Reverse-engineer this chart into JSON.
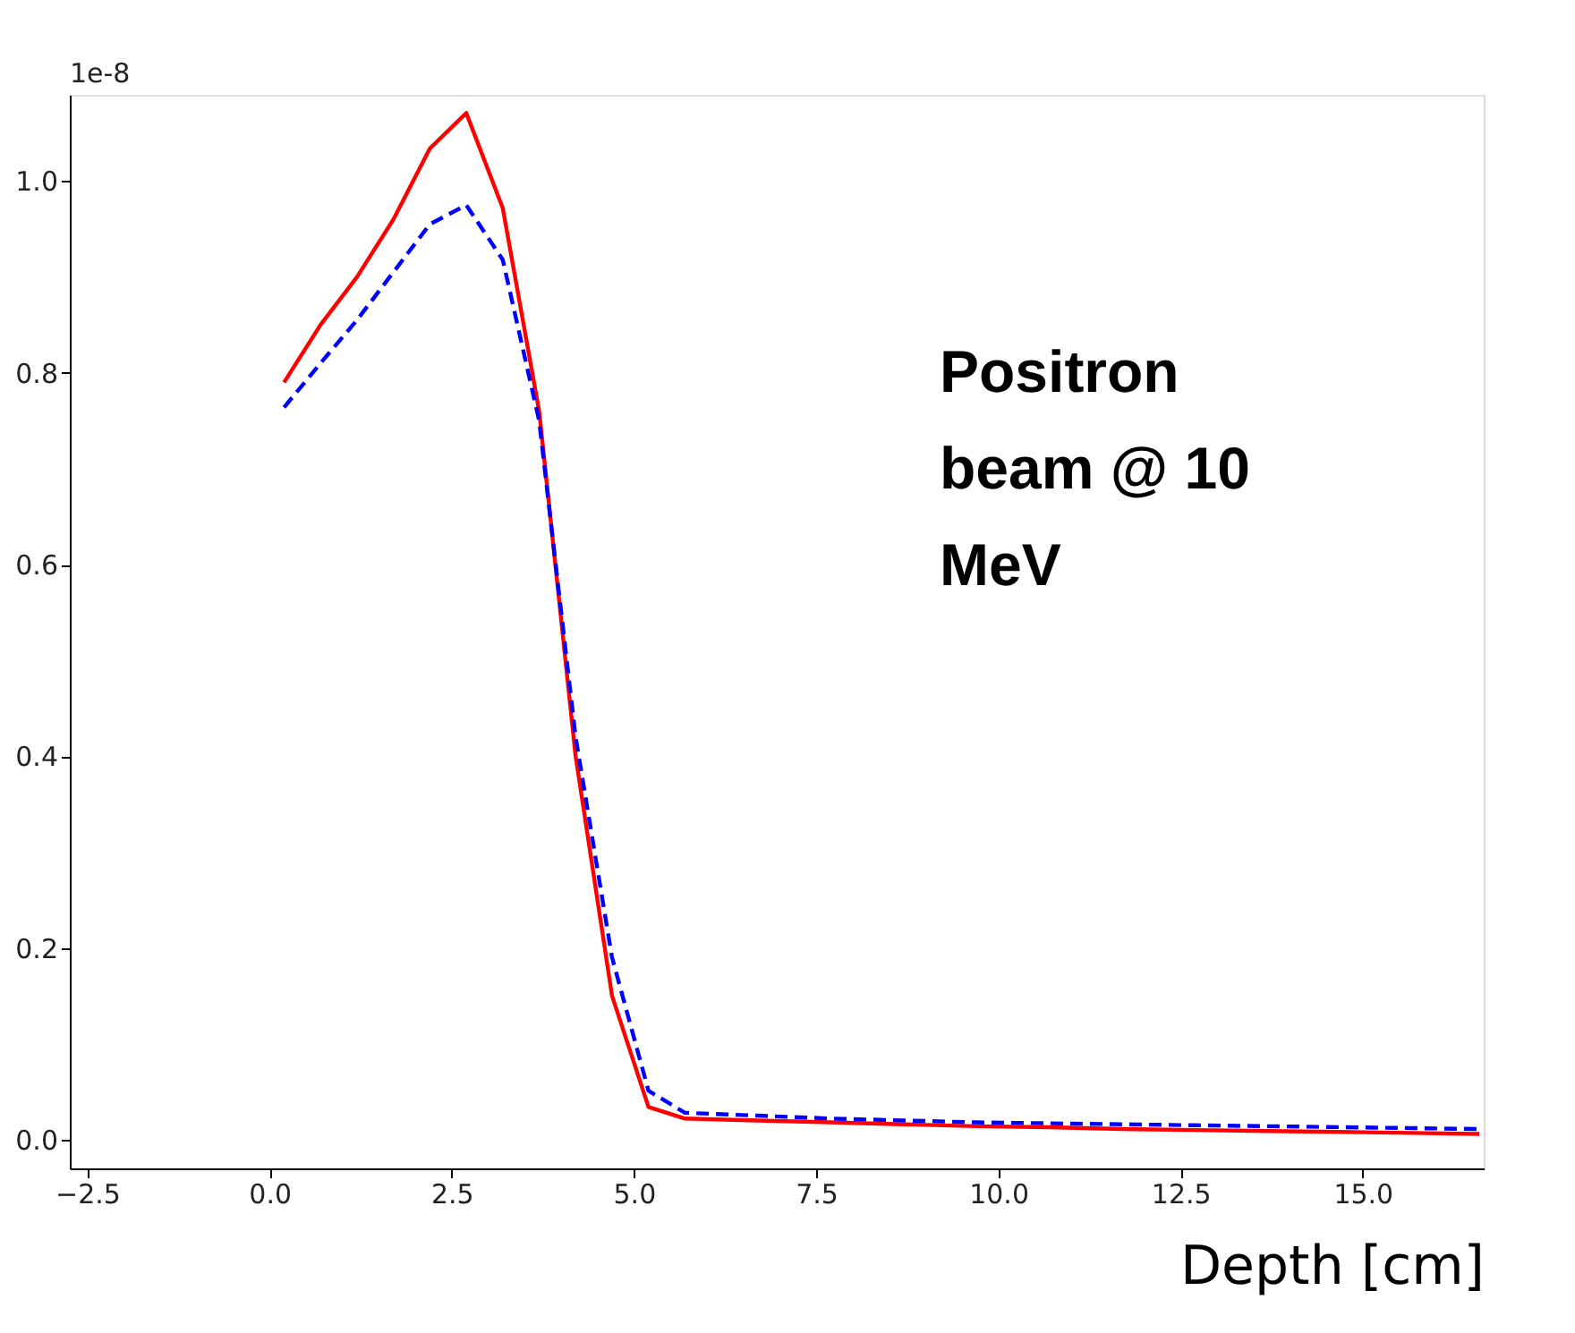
{
  "chart_data": {
    "type": "line",
    "xlabel": "Depth  [cm]",
    "annotations": [
      "1e-8",
      "Positron beam @ 10 MeV"
    ],
    "x": [
      0.2,
      0.7,
      1.2,
      1.7,
      2.2,
      2.7,
      3.2,
      3.7,
      4.2,
      4.7,
      5.2,
      5.7,
      6.7,
      7.7,
      8.7,
      9.7,
      10.7,
      11.7,
      12.7,
      13.7,
      14.7,
      15.7,
      16.6
    ],
    "series": [
      {
        "color": "#ff0000",
        "line_style": "solid",
        "values": [
          0.79,
          0.85,
          0.9,
          0.96,
          1.034,
          1.071,
          0.972,
          0.76,
          0.4,
          0.15,
          0.034,
          0.022,
          0.02,
          0.018,
          0.016,
          0.014,
          0.013,
          0.011,
          0.01,
          0.009,
          0.008,
          0.007,
          0.006
        ]
      },
      {
        "color": "#0000ff",
        "line_style": "dashed",
        "values": [
          0.764,
          0.81,
          0.855,
          0.905,
          0.955,
          0.975,
          0.918,
          0.75,
          0.42,
          0.19,
          0.051,
          0.028,
          0.025,
          0.022,
          0.02,
          0.018,
          0.017,
          0.016,
          0.015,
          0.014,
          0.013,
          0.012,
          0.011
        ]
      }
    ],
    "xlim": [
      -2.74,
      16.66
    ],
    "ylim": [
      -0.03,
      1.09
    ],
    "xticks": [
      {
        "value": -2.5,
        "label": "−2.5"
      },
      {
        "value": 0,
        "label": "0.0"
      },
      2.5,
      {
        "value": 5,
        "label": "5.0"
      },
      7.5,
      {
        "value": 10,
        "label": "10.0"
      },
      12.5,
      {
        "value": 15,
        "label": "15.0"
      }
    ],
    "yticks": [
      {
        "value": 0,
        "label": "0.0"
      },
      0.2,
      0.4,
      0.6,
      0.8,
      {
        "value": 1,
        "label": "1.0"
      }
    ],
    "grid": false
  }
}
